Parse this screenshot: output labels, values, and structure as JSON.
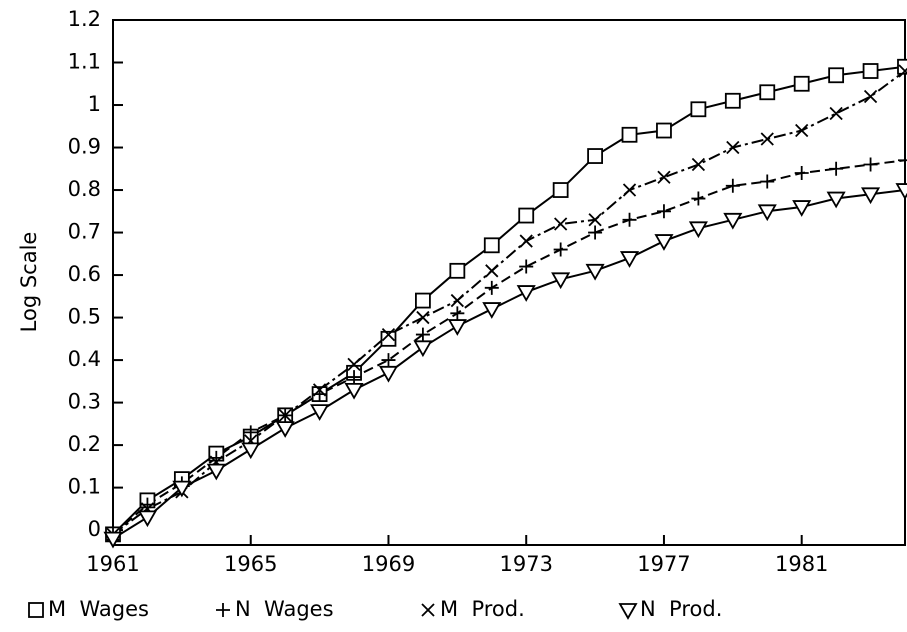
{
  "chart_data": {
    "type": "line",
    "y_label": "Log Scale",
    "x": [
      1961,
      1962,
      1963,
      1964,
      1965,
      1966,
      1967,
      1968,
      1969,
      1970,
      1971,
      1972,
      1973,
      1974,
      1975,
      1976,
      1977,
      1978,
      1979,
      1980,
      1981,
      1982,
      1983,
      1984
    ],
    "xlim": [
      1961,
      1984
    ],
    "xticks": [
      1961,
      1965,
      1969,
      1973,
      1977,
      1981
    ],
    "ylim": [
      -0.035,
      1.2
    ],
    "yticks": [
      0,
      0.1,
      0.2,
      0.3,
      0.4,
      0.5,
      0.6,
      0.7,
      0.8,
      0.9,
      1,
      1.1,
      1.2
    ],
    "grid": false,
    "legend": "bottom",
    "series": [
      {
        "name": "M  Wages",
        "color": "#000000",
        "marker": "square",
        "dash": "none",
        "values": [
          -0.01,
          0.07,
          0.12,
          0.18,
          0.22,
          0.27,
          0.32,
          0.37,
          0.45,
          0.54,
          0.61,
          0.67,
          0.74,
          0.8,
          0.88,
          0.93,
          0.94,
          0.99,
          1.01,
          1.03,
          1.05,
          1.07,
          1.08,
          1.09
        ]
      },
      {
        "name": "N  Wages",
        "color": "#000000",
        "marker": "plus",
        "dash": "10 5",
        "values": [
          -0.01,
          0.06,
          0.11,
          0.17,
          0.23,
          0.27,
          0.32,
          0.36,
          0.4,
          0.46,
          0.51,
          0.57,
          0.62,
          0.66,
          0.7,
          0.73,
          0.75,
          0.78,
          0.81,
          0.82,
          0.84,
          0.85,
          0.86,
          0.87
        ]
      },
      {
        "name": "M  Prod.",
        "color": "#000000",
        "marker": "x",
        "dash": "12 4 3 4",
        "values": [
          -0.01,
          0.05,
          0.09,
          0.16,
          0.21,
          0.27,
          0.33,
          0.39,
          0.46,
          0.5,
          0.54,
          0.61,
          0.68,
          0.72,
          0.73,
          0.8,
          0.83,
          0.86,
          0.9,
          0.92,
          0.94,
          0.98,
          1.02,
          1.08
        ]
      },
      {
        "name": "N  Prod.",
        "color": "#000000",
        "marker": "triangle-down",
        "dash": "none",
        "values": [
          -0.02,
          0.03,
          0.1,
          0.14,
          0.19,
          0.24,
          0.28,
          0.33,
          0.37,
          0.43,
          0.48,
          0.52,
          0.56,
          0.59,
          0.61,
          0.64,
          0.68,
          0.71,
          0.73,
          0.75,
          0.76,
          0.78,
          0.79,
          0.8
        ]
      }
    ]
  }
}
